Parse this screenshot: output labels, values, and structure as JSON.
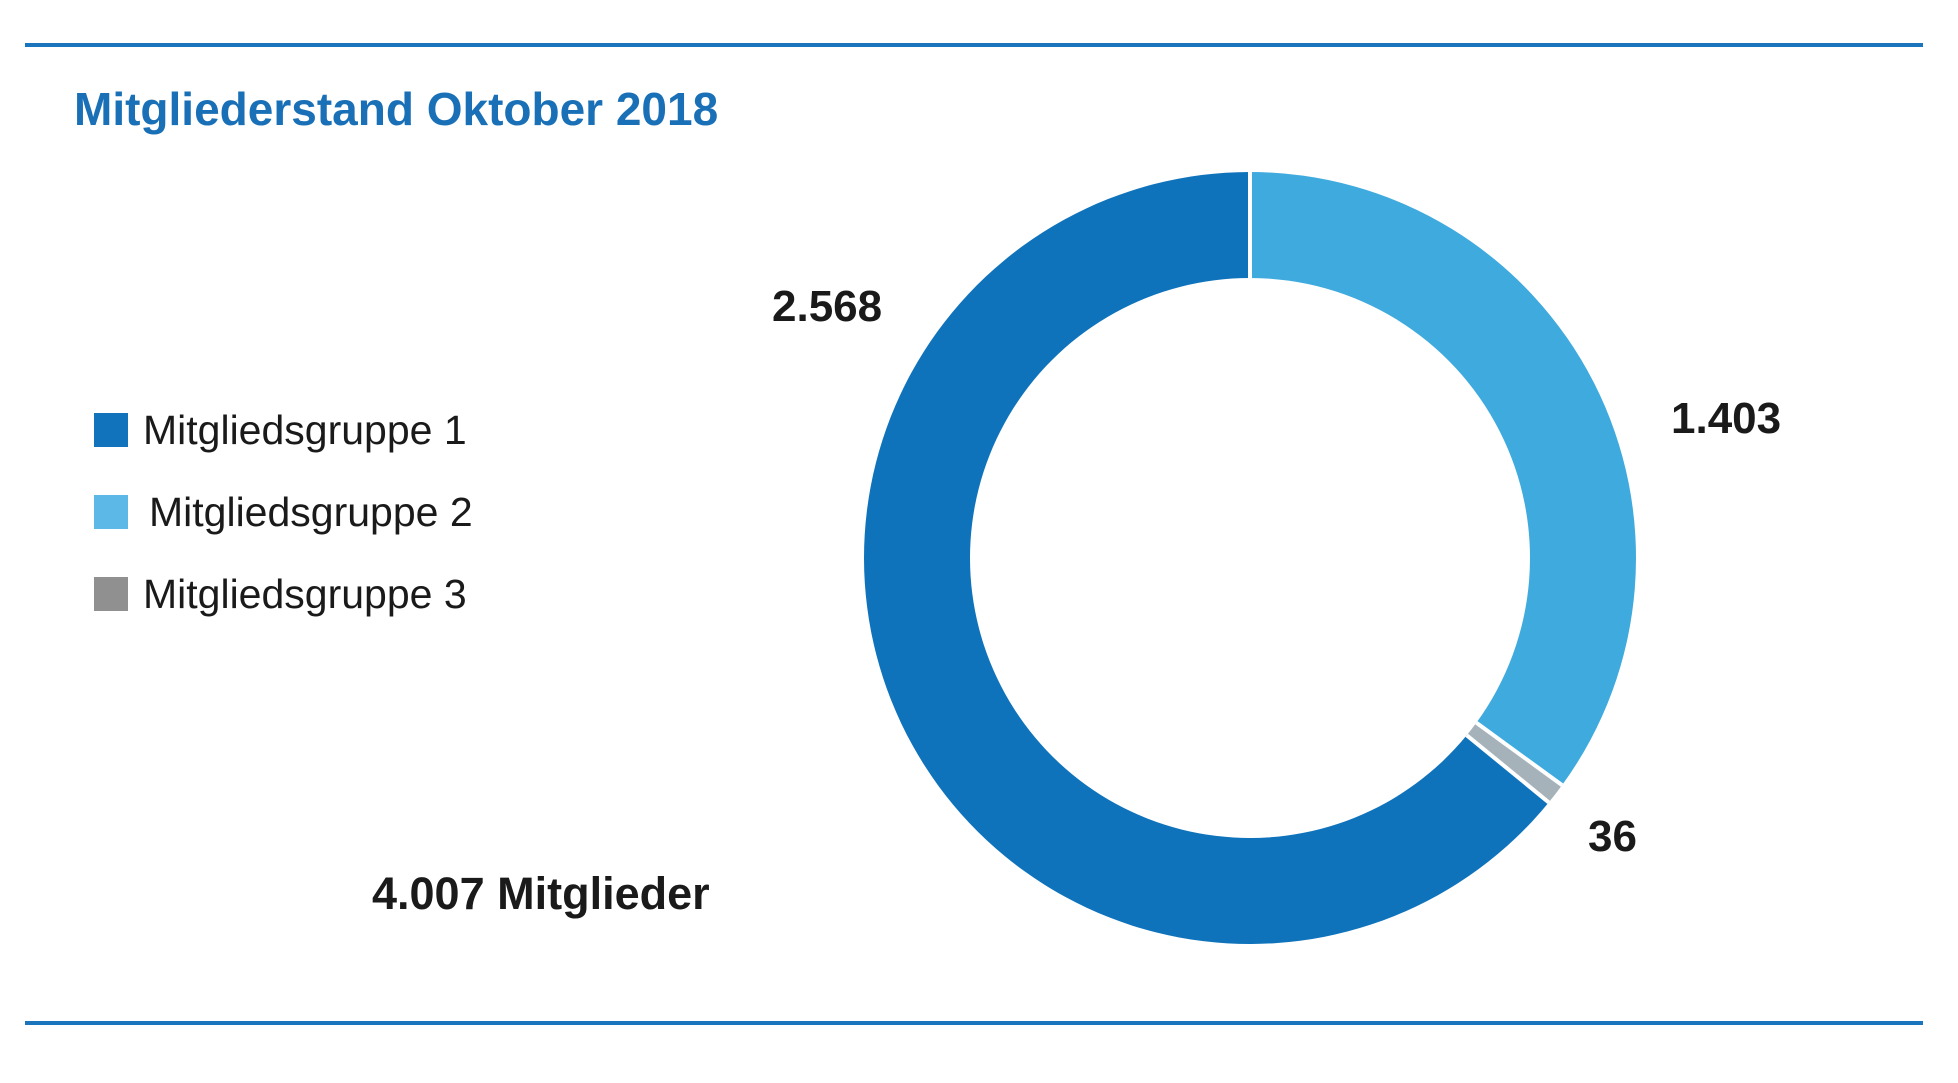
{
  "title": "Mitgliederstand Oktober 2018",
  "accent": {
    "rule_color": "#1b75bc",
    "title_color": "#1a70b6"
  },
  "legend": {
    "items": [
      {
        "label": "Mitgliedsgruppe 1",
        "color": "#1173bb"
      },
      {
        "label": "Mitgliedsgruppe 2",
        "color": "#5cb8e6"
      },
      {
        "label": "Mitgliedsgruppe 3",
        "color": "#909090"
      }
    ]
  },
  "chart_data": {
    "type": "pie",
    "variant": "donut",
    "title": "Mitgliederstand Oktober 2018",
    "categories": [
      "Mitgliedsgruppe 1",
      "Mitgliedsgruppe 2",
      "Mitgliedsgruppe 3"
    ],
    "values": [
      2568,
      1403,
      36
    ],
    "total": 4007,
    "total_label": "4.007 Mitglieder",
    "start_angle_deg": 0,
    "direction": "clockwise",
    "order_from_top_clockwise": [
      "Mitgliedsgruppe 2",
      "Mitgliedsgruppe 3",
      "Mitgliedsgruppe 1"
    ],
    "segments": [
      {
        "name": "Mitgliedsgruppe 2",
        "value": 1403,
        "label": "1.403",
        "color": "#3faade"
      },
      {
        "name": "Mitgliedsgruppe 3",
        "value": 36,
        "label": "36",
        "color": "#a6b2ba"
      },
      {
        "name": "Mitgliedsgruppe 1",
        "value": 2568,
        "label": "2.568",
        "color": "#0f73bc"
      }
    ],
    "separator_color": "#ffffff",
    "legend_position": "left",
    "callout_color": "#1a1a1a"
  }
}
